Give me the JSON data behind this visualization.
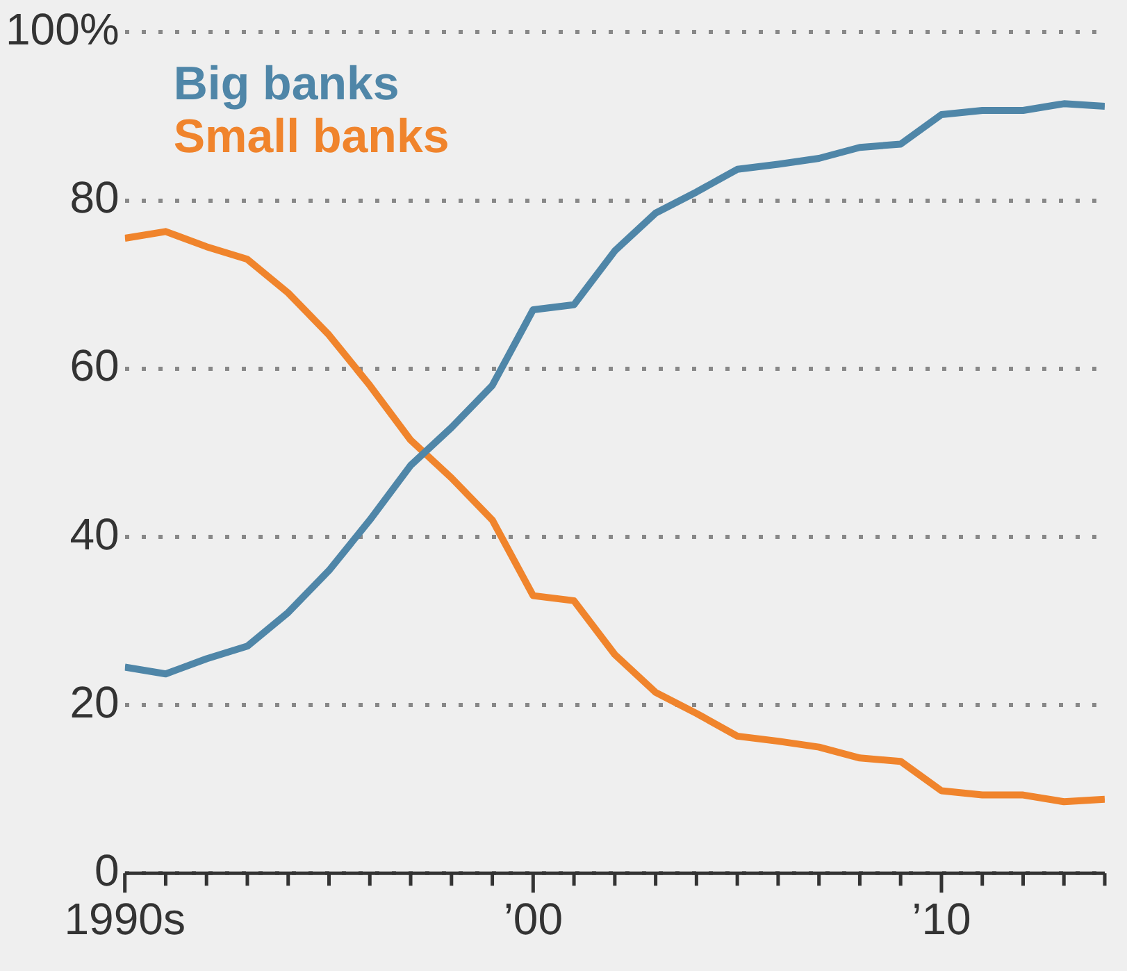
{
  "chart_data": {
    "type": "line",
    "x": [
      1990,
      1991,
      1992,
      1993,
      1994,
      1995,
      1996,
      1997,
      1998,
      1999,
      2000,
      2001,
      2002,
      2003,
      2004,
      2005,
      2006,
      2007,
      2008,
      2009,
      2010,
      2011,
      2012,
      2013,
      2014
    ],
    "series": [
      {
        "name": "Big banks",
        "color": "#4f86a8",
        "values": [
          24.5,
          23.7,
          25.5,
          27,
          31,
          36,
          42,
          48.5,
          53,
          58,
          67,
          67.6,
          74,
          78.5,
          81,
          83.7,
          84.3,
          85,
          86.3,
          86.7,
          90.2,
          90.7,
          90.7,
          91.5,
          91.2
        ]
      },
      {
        "name": "Small banks",
        "color": "#f0842c",
        "values": [
          75.5,
          76.3,
          74.5,
          73,
          69,
          64,
          58,
          51.5,
          47,
          42,
          33,
          32.4,
          26,
          21.5,
          19,
          16.3,
          15.7,
          15,
          13.7,
          13.3,
          9.8,
          9.3,
          9.3,
          8.5,
          8.8
        ]
      }
    ],
    "xlim": [
      1990,
      2014
    ],
    "xticks": [
      {
        "value": 1990,
        "label": "1990s"
      },
      {
        "value": 1991,
        "label": null
      },
      {
        "value": 1992,
        "label": null
      },
      {
        "value": 1993,
        "label": null
      },
      {
        "value": 1994,
        "label": null
      },
      {
        "value": 1995,
        "label": null
      },
      {
        "value": 1996,
        "label": null
      },
      {
        "value": 1997,
        "label": null
      },
      {
        "value": 1998,
        "label": null
      },
      {
        "value": 1999,
        "label": null
      },
      {
        "value": 2000,
        "label": "’00"
      },
      {
        "value": 2001,
        "label": null
      },
      {
        "value": 2002,
        "label": null
      },
      {
        "value": 2003,
        "label": null
      },
      {
        "value": 2004,
        "label": null
      },
      {
        "value": 2005,
        "label": null
      },
      {
        "value": 2006,
        "label": null
      },
      {
        "value": 2007,
        "label": null
      },
      {
        "value": 2008,
        "label": null
      },
      {
        "value": 2009,
        "label": null
      },
      {
        "value": 2010,
        "label": "’10"
      },
      {
        "value": 2011,
        "label": null
      },
      {
        "value": 2012,
        "label": null
      },
      {
        "value": 2013,
        "label": null
      },
      {
        "value": 2014,
        "label": null
      }
    ],
    "ylim": [
      0,
      100
    ],
    "yticks": [
      0,
      20,
      40,
      60,
      80,
      {
        "value": 100,
        "label": "100%"
      }
    ],
    "grid": "y",
    "legend": "top left"
  }
}
